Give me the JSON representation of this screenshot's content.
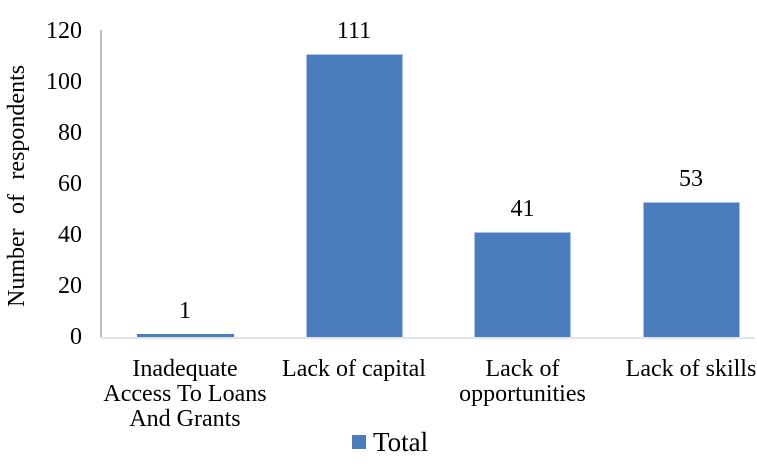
{
  "chart_data": {
    "type": "bar",
    "title": "",
    "categories": [
      "Inadequate Access To Loans And Grants",
      "Lack of capital",
      "Lack of opportunities",
      "Lack of skills"
    ],
    "category_display_lines": [
      [
        "Inadequate",
        "Access To Loans",
        "And Grants"
      ],
      [
        "Lack of capital"
      ],
      [
        "Lack of",
        "opportunities"
      ],
      [
        "Lack of skills"
      ]
    ],
    "values": [
      1,
      111,
      41,
      53
    ],
    "data_labels": [
      "1",
      "111",
      "41",
      "53"
    ],
    "xlabel": "",
    "ylabel": "Number of respondents",
    "yticks": [
      0,
      20,
      40,
      60,
      80,
      100,
      120
    ],
    "ylim": [
      0,
      120
    ],
    "grid": false,
    "legend_label": "Total",
    "legend_position": "bottom-center",
    "series": [
      {
        "name": "Total",
        "values": [
          1,
          111,
          41,
          53
        ]
      }
    ],
    "colors": {
      "bar_fill": "#4A7CBE",
      "bar_border": "#A9C3E2",
      "axis_line": "#BDBDBD",
      "baseline": "#E2E5E8",
      "text": "#000000"
    }
  }
}
